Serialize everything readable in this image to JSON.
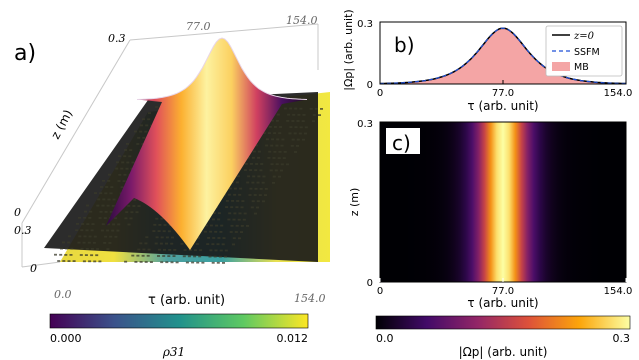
{
  "panels": {
    "a": {
      "label": "a)"
    },
    "b": {
      "label": "b)"
    },
    "c": {
      "label": "c)"
    }
  },
  "colors": {
    "line_z0": "#000000",
    "line_ssfm": "#1f4fd6",
    "fill_mb": "#f4a5a5",
    "viridis": [
      "#440154",
      "#3b528b",
      "#21918c",
      "#5ec962",
      "#fde725"
    ],
    "inferno": [
      "#000004",
      "#420a68",
      "#932667",
      "#dd513a",
      "#fca50a",
      "#fcffa4"
    ]
  },
  "chart_data": [
    {
      "panel": "a",
      "type": "surface3d",
      "xlabel": "τ (arb. unit)",
      "ylabel": "z (m)",
      "xticks": [
        "0.0",
        "77.0",
        "154.0"
      ],
      "zticks_back": [
        "0.3",
        "0"
      ],
      "zticks_front": [
        "0.3",
        "0"
      ],
      "xlim": [
        0,
        154
      ],
      "zlim": [
        0,
        0.3
      ],
      "pulse_center": 77,
      "pulse_width": 14,
      "colorbar": {
        "label": "ρ31",
        "min": "0.000",
        "max": "0.012",
        "colormap": "viridis"
      }
    },
    {
      "panel": "b",
      "type": "line",
      "xlabel": "τ (arb. unit)",
      "ylabel": "|Ωp| (arb. unit)",
      "xlim": [
        0,
        154
      ],
      "ylim": [
        0,
        0.3
      ],
      "xticks": [
        "0",
        "77.0",
        "154.0"
      ],
      "yticks": [
        "0",
        "0.3"
      ],
      "legend": {
        "placement": "top-right",
        "entries": [
          "z=0",
          "SSFM",
          "MB"
        ]
      },
      "series": [
        {
          "name": "z=0",
          "kind": "line",
          "center": 77,
          "width": 14,
          "peak": 0.27
        },
        {
          "name": "SSFM",
          "kind": "dashed",
          "center": 77,
          "width": 14,
          "peak": 0.27
        },
        {
          "name": "MB",
          "kind": "area",
          "center": 77,
          "width": 14,
          "peak": 0.27
        }
      ]
    },
    {
      "panel": "c",
      "type": "heatmap",
      "xlabel": "τ (arb. unit)",
      "ylabel": "z (m)",
      "xlim": [
        0,
        154
      ],
      "ylim": [
        0,
        0.3
      ],
      "xticks": [
        "0",
        "77.0",
        "154.0"
      ],
      "yticks": [
        "0",
        "0.3"
      ],
      "pulse_center": 77,
      "pulse_width": 14,
      "colorbar": {
        "label": "|Ωp| (arb. unit)",
        "min": "0.0",
        "max": "0.3",
        "colormap": "inferno"
      }
    }
  ]
}
